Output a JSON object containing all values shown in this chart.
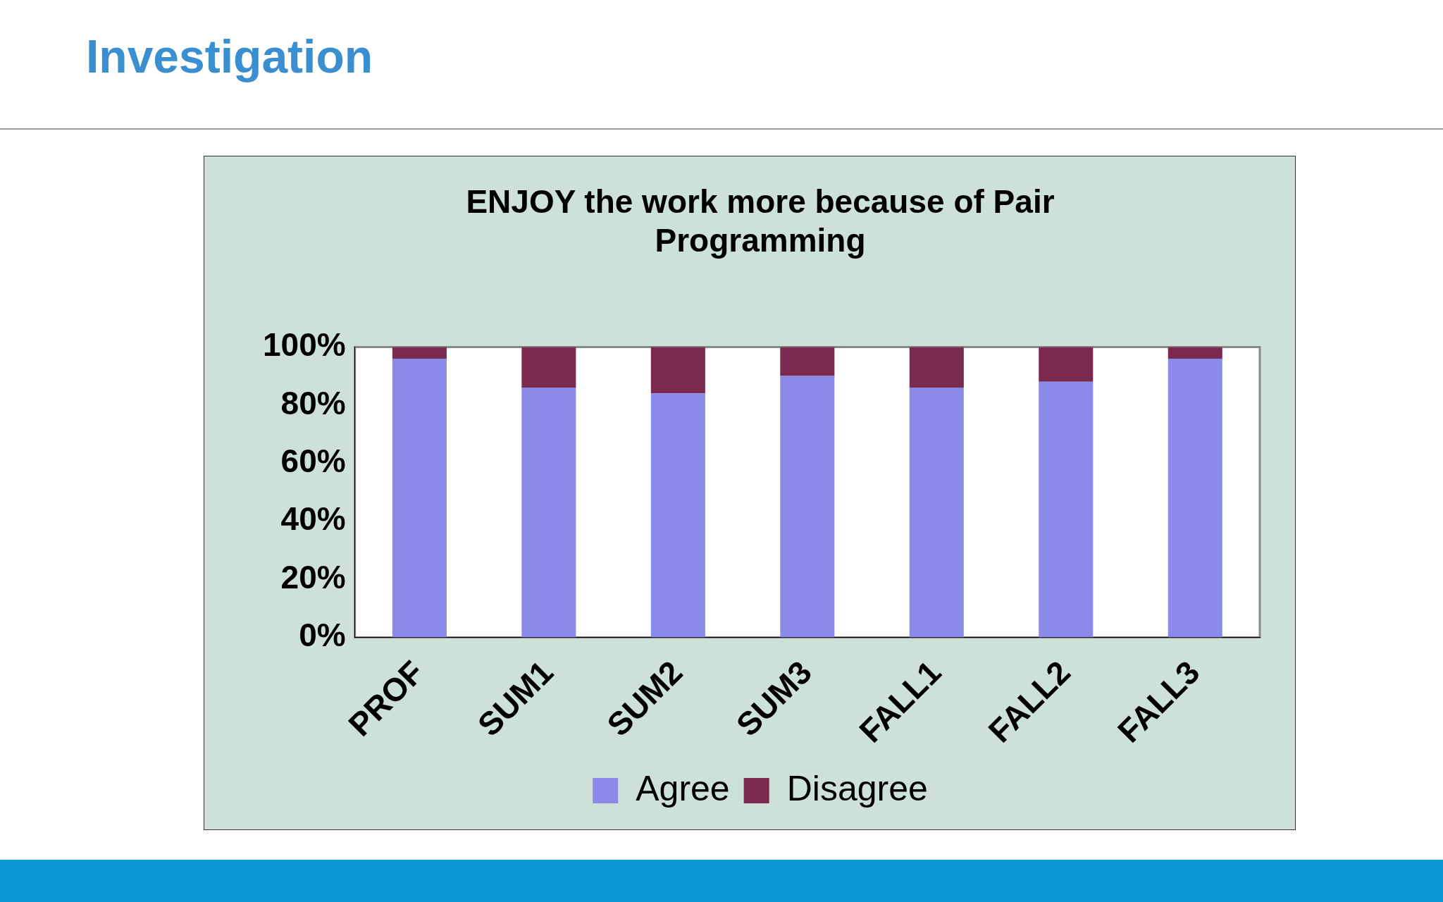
{
  "chart_data": {
    "type": "bar",
    "title": "ENJOY the work more because of Pair Programming",
    "annotations": [
      "Investigation"
    ],
    "categories": [
      "PROF",
      "SUM1",
      "SUM2",
      "SUM3",
      "FALL1",
      "FALL2",
      "FALL3"
    ],
    "stacked": true,
    "series": [
      {
        "name": "Agree",
        "color": "#8a8ae8",
        "values": [
          96,
          86,
          84,
          90,
          86,
          88,
          96
        ]
      },
      {
        "name": "Disagree",
        "color": "#7a2a4e",
        "values": [
          4,
          14,
          16,
          10,
          14,
          12,
          4
        ]
      }
    ],
    "ylim": [
      0,
      100
    ],
    "yticks": [
      {
        "value": 0,
        "label": "0%"
      },
      {
        "value": 20,
        "label": "20%"
      },
      {
        "value": 40,
        "label": "40%"
      },
      {
        "value": 60,
        "label": "60%"
      },
      {
        "value": 80,
        "label": "80%"
      },
      {
        "value": 100,
        "label": "100%"
      }
    ],
    "grid": false,
    "legend": "bottom"
  }
}
